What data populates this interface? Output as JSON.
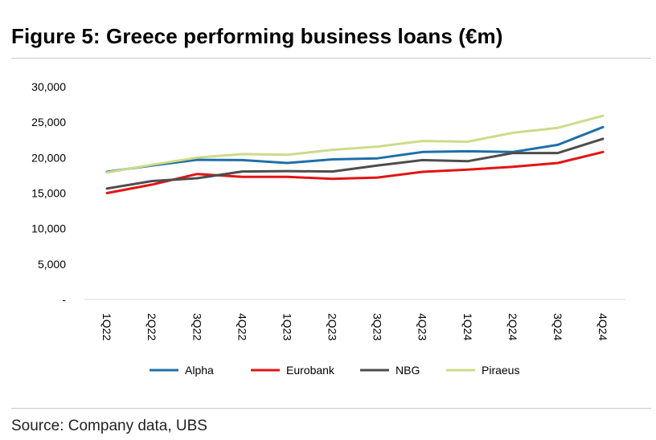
{
  "header": {
    "title": "Figure 5: Greece performing business loans (€m)"
  },
  "footer": {
    "source": "Source: Company data, UBS"
  },
  "chart_data": {
    "type": "line",
    "title": "Figure 5: Greece performing business loans (€m)",
    "xlabel": "",
    "ylabel": "",
    "ylim": [
      0,
      30000
    ],
    "yticks": [
      {
        "value": 0,
        "label": "-"
      },
      {
        "value": 5000,
        "label": "5,000"
      },
      {
        "value": 10000,
        "label": "10,000"
      },
      {
        "value": 15000,
        "label": "15,000"
      },
      {
        "value": 20000,
        "label": "20,000"
      },
      {
        "value": 25000,
        "label": "25,000"
      },
      {
        "value": 30000,
        "label": "30,000"
      }
    ],
    "grid": false,
    "legend": "bottom",
    "categories": [
      "1Q22",
      "2Q22",
      "3Q22",
      "4Q22",
      "1Q23",
      "2Q23",
      "3Q23",
      "4Q23",
      "1Q24",
      "2Q24",
      "3Q24",
      "4Q24"
    ],
    "series": [
      {
        "name": "Alpha",
        "color": "#1f6fa8",
        "values": [
          18000,
          18900,
          19700,
          19650,
          19250,
          19750,
          19900,
          20800,
          20900,
          20800,
          21800,
          24300
        ]
      },
      {
        "name": "Eurobank",
        "color": "#e31414",
        "values": [
          15000,
          16200,
          17700,
          17300,
          17300,
          17000,
          17200,
          18000,
          18300,
          18700,
          19250,
          20800
        ]
      },
      {
        "name": "NBG",
        "color": "#4d4d4d",
        "values": [
          15650,
          16700,
          17100,
          18050,
          18100,
          18050,
          18900,
          19650,
          19500,
          20650,
          20650,
          22650
        ]
      },
      {
        "name": "Piraeus",
        "color": "#cddb8a",
        "values": [
          17900,
          19000,
          20000,
          20500,
          20400,
          21100,
          21550,
          22350,
          22250,
          23500,
          24200,
          25900
        ]
      }
    ]
  }
}
